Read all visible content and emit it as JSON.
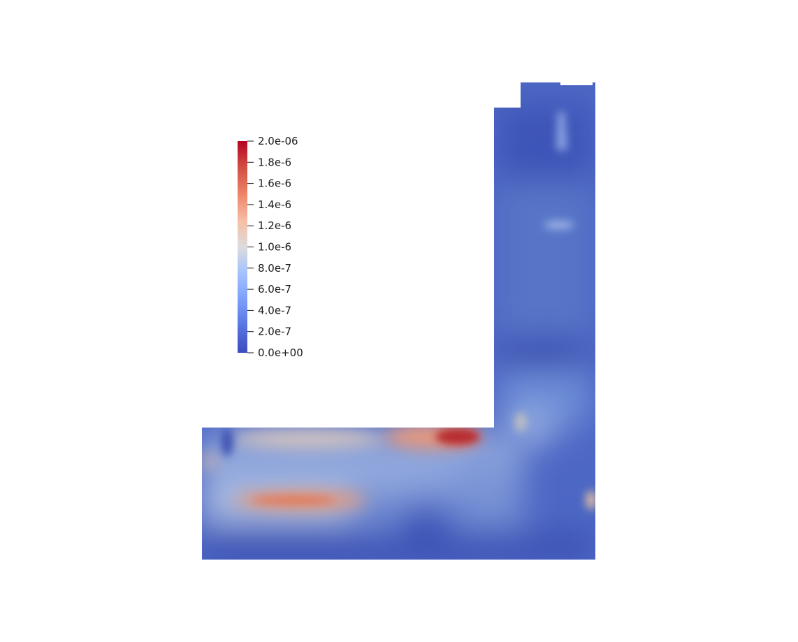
{
  "colorbar": {
    "range": [
      0,
      2e-06
    ],
    "tick_labels": [
      {
        "value": 2e-06,
        "label": "2.0e-06"
      },
      {
        "value": 1.8e-06,
        "label": "1.8e-6"
      },
      {
        "value": 1.6e-06,
        "label": "1.6e-6"
      },
      {
        "value": 1.4e-06,
        "label": "1.4e-6"
      },
      {
        "value": 1.2e-06,
        "label": "1.2e-6"
      },
      {
        "value": 1e-06,
        "label": "1.0e-6"
      },
      {
        "value": 8e-07,
        "label": "8.0e-7"
      },
      {
        "value": 6e-07,
        "label": "6.0e-7"
      },
      {
        "value": 4e-07,
        "label": "4.0e-7"
      },
      {
        "value": 2e-07,
        "label": "2.0e-7"
      },
      {
        "value": 0,
        "label": "0.0e+00"
      }
    ],
    "colormap": {
      "name": "coolwarm",
      "low": "#3b4cc0",
      "mid": "#dddddd",
      "high": "#b40426"
    }
  }
}
